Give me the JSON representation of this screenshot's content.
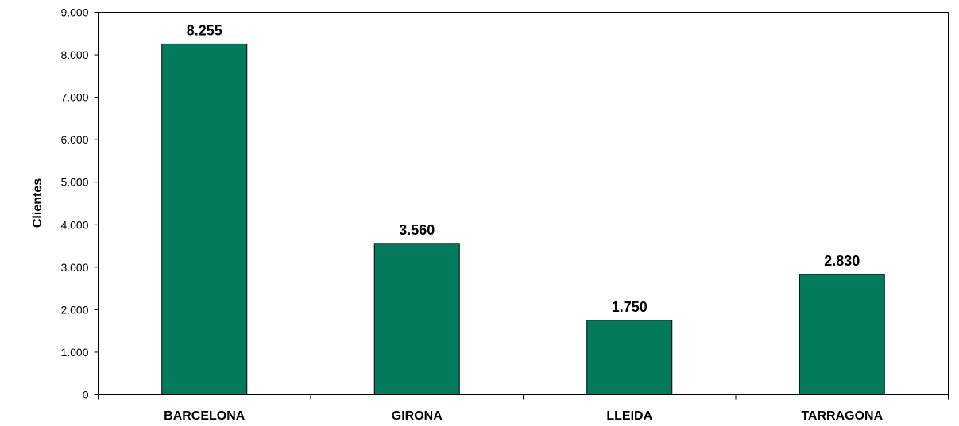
{
  "chart_data": {
    "type": "bar",
    "categories": [
      "BARCELONA",
      "GIRONA",
      "LLEIDA",
      "TARRAGONA"
    ],
    "values": [
      8255,
      3560,
      1750,
      2830
    ],
    "value_labels": [
      "8.255",
      "3.560",
      "1.750",
      "2.830"
    ],
    "ylabel": "Clientes",
    "xlabel": "",
    "ylim": [
      0,
      9000
    ],
    "yticks": [
      0,
      1000,
      2000,
      3000,
      4000,
      5000,
      6000,
      7000,
      8000,
      9000
    ],
    "ytick_labels": [
      "0",
      "1.000",
      "2.000",
      "3.000",
      "4.000",
      "5.000",
      "6.000",
      "7.000",
      "8.000",
      "9.000"
    ],
    "grid": false,
    "legend": "none",
    "bar_color": "#037A5B"
  }
}
